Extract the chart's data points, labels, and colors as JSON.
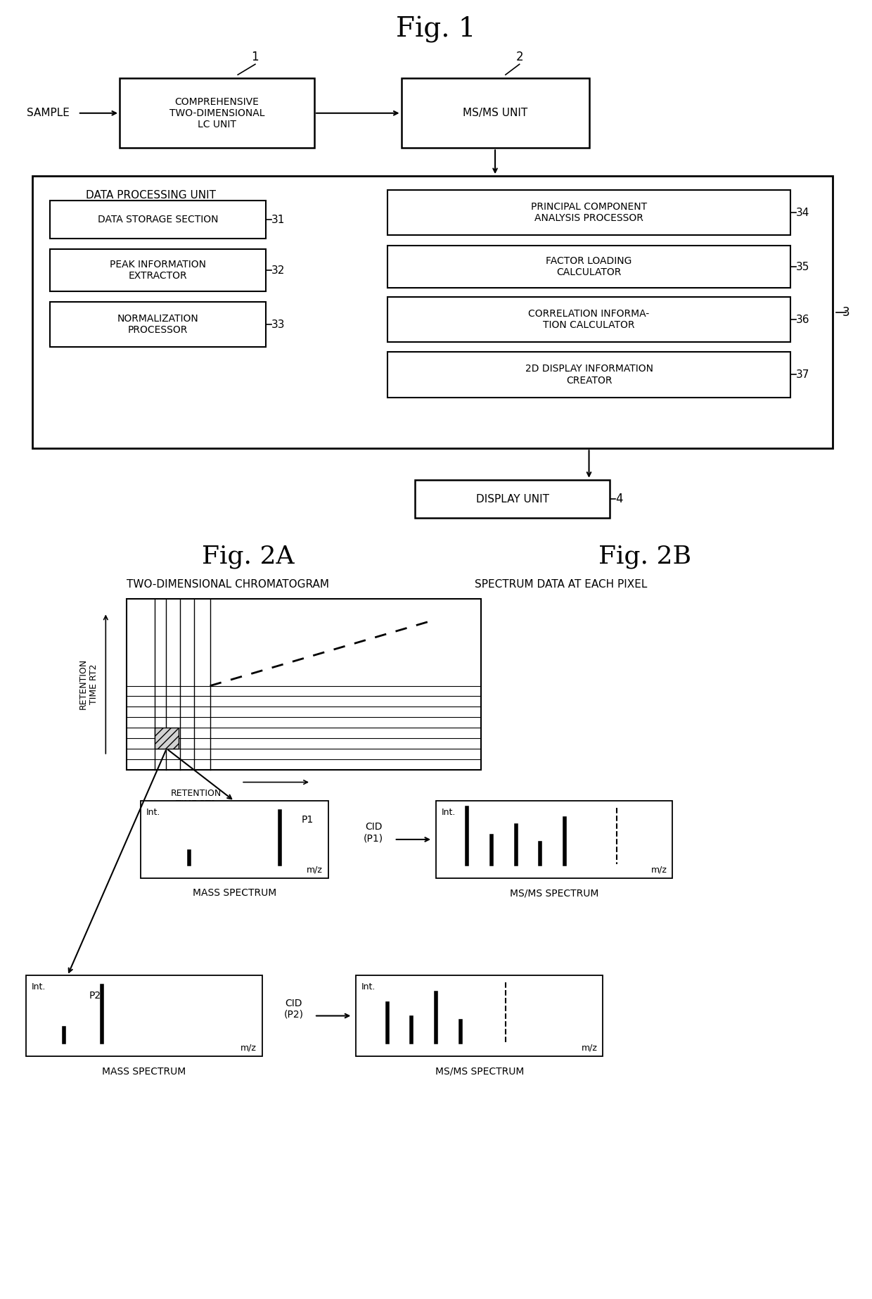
{
  "fig1_title": "Fig. 1",
  "fig2a_title": "Fig. 2A",
  "fig2b_title": "Fig. 2B",
  "bg_color": "#ffffff",
  "box_color": "#000000",
  "text_color": "#000000"
}
